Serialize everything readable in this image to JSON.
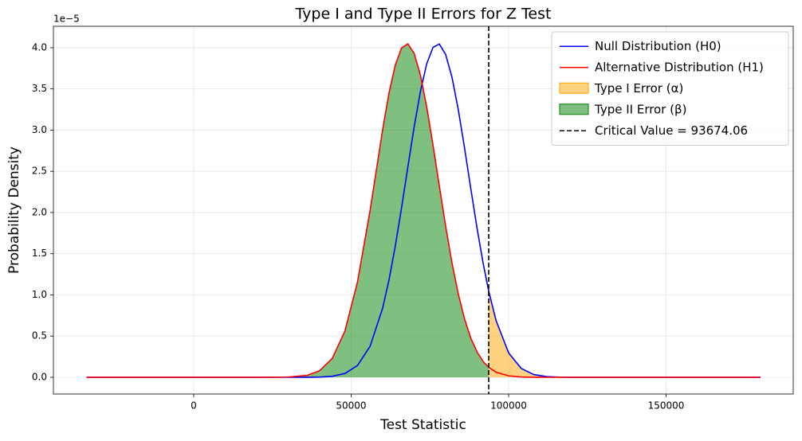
{
  "chart_data": {
    "type": "line",
    "title": "Type I and Type II Errors for Z Test",
    "xlabel": "Test Statistic",
    "ylabel": "Probability Density",
    "y_offset_label": "1e−5",
    "x": [
      -34000,
      0,
      20000,
      30000,
      36000,
      40000,
      44000,
      48000,
      52000,
      56000,
      60000,
      62000,
      64000,
      66000,
      68000,
      70000,
      72000,
      74000,
      76000,
      78000,
      80000,
      82000,
      84000,
      86000,
      88000,
      90000,
      92000,
      93674.06,
      96000,
      100000,
      104000,
      108000,
      112000,
      116000,
      120000,
      130000,
      150000,
      180000
    ],
    "series": [
      {
        "name": "Null Distribution (H0)",
        "color": "#0000ff",
        "values": [
          0,
          0,
          0,
          0,
          0.0006,
          0.0029,
          0.0126,
          0.0461,
          0.143,
          0.376,
          0.84,
          1.179,
          1.59,
          2.057,
          2.552,
          3.038,
          3.471,
          3.806,
          4.005,
          4.044,
          3.918,
          3.643,
          3.251,
          2.783,
          2.287,
          1.803,
          1.365,
          1.047,
          0.69,
          0.296,
          0.108,
          0.033,
          0.0087,
          0.0019,
          0.0004,
          0,
          0,
          0
        ]
      },
      {
        "name": "Alternative Distribution (H1)",
        "color": "#ff0000",
        "values": [
          0,
          0,
          0,
          0.0028,
          0.0236,
          0.08,
          0.23,
          0.559,
          1.155,
          2.023,
          3.006,
          3.447,
          3.788,
          3.997,
          4.047,
          3.931,
          3.665,
          3.279,
          2.814,
          2.32,
          1.834,
          1.391,
          1.013,
          0.707,
          0.474,
          0.305,
          0.188,
          0.122,
          0.063,
          0.018,
          0.0044,
          0.0009,
          0.0002,
          0,
          0,
          0,
          0,
          0
        ]
      }
    ],
    "fills": [
      {
        "name": "Type I Error (α)",
        "color": "orange",
        "opacity": 0.5,
        "series": 0,
        "side": "right"
      },
      {
        "name": "Type II Error (β)",
        "color": "green",
        "opacity": 0.5,
        "series": 1,
        "side": "left"
      }
    ],
    "vline": {
      "value": 93674.06,
      "label": "Critical Value = 93674.06",
      "color": "#000000",
      "dash": true
    },
    "xlim": [
      -44557,
      190380
    ],
    "ylim": [
      -0.203,
      4.26
    ],
    "xticks": [
      0,
      50000,
      100000,
      150000
    ],
    "yticks": [
      {
        "value": 0,
        "label": "0.0"
      },
      {
        "value": 0.5,
        "label": "0.5"
      },
      {
        "value": 1,
        "label": "1.0"
      },
      {
        "value": 1.5,
        "label": "1.5"
      },
      {
        "value": 2,
        "label": "2.0"
      },
      {
        "value": 2.5,
        "label": "2.5"
      },
      {
        "value": 3,
        "label": "3.0"
      },
      {
        "value": 3.5,
        "label": "3.5"
      },
      {
        "value": 4,
        "label": "4.0"
      }
    ],
    "grid": true,
    "legend": "upper right"
  }
}
